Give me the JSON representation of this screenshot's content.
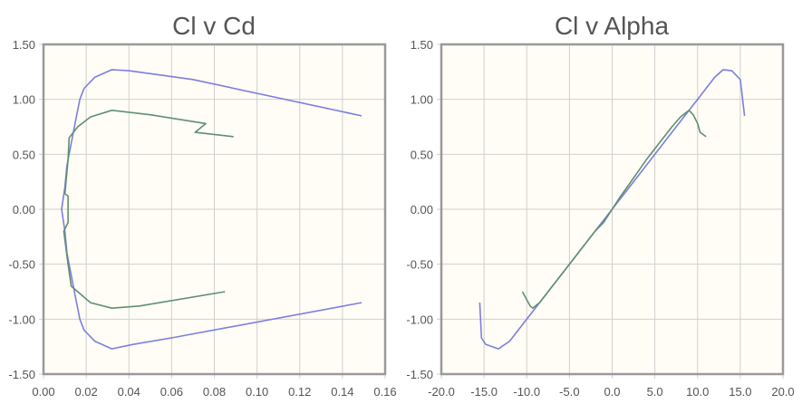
{
  "chart_data": [
    {
      "type": "line",
      "title": "Cl v Cd",
      "xlim": [
        0,
        0.16
      ],
      "ylim": [
        -1.5,
        1.5
      ],
      "xticks": [
        "0.00",
        "0.02",
        "0.04",
        "0.06",
        "0.08",
        "0.10",
        "0.12",
        "0.14",
        "0.16"
      ],
      "yticks": [
        "1.50",
        "1.00",
        "0.50",
        "0.00",
        "-0.50",
        "-1.00",
        "-1.50"
      ],
      "grid": true,
      "background": "#fffdf5",
      "series": [
        {
          "color": "#7b7fe0",
          "x": [
            0.149,
            0.06,
            0.042,
            0.032,
            0.024,
            0.019,
            0.017,
            0.015,
            0.013,
            0.011,
            0.01,
            0.0085,
            0.01,
            0.011,
            0.013,
            0.015,
            0.017,
            0.019,
            0.024,
            0.032,
            0.04,
            0.07,
            0.149
          ],
          "y": [
            -0.85,
            -1.17,
            -1.23,
            -1.27,
            -1.2,
            -1.1,
            -1.0,
            -0.8,
            -0.6,
            -0.4,
            -0.2,
            0.0,
            0.2,
            0.4,
            0.6,
            0.8,
            1.0,
            1.1,
            1.2,
            1.27,
            1.26,
            1.18,
            0.85
          ]
        },
        {
          "color": "#5f9070",
          "x": [
            0.085,
            0.045,
            0.032,
            0.022,
            0.013,
            0.0115,
            0.0095,
            0.0115,
            0.0115,
            0.0115,
            0.01,
            0.0115,
            0.012,
            0.016,
            0.022,
            0.032,
            0.05,
            0.076,
            0.071,
            0.089
          ],
          "y": [
            -0.75,
            -0.88,
            -0.9,
            -0.85,
            -0.7,
            -0.5,
            -0.2,
            -0.12,
            0.0,
            0.12,
            0.14,
            0.45,
            0.65,
            0.75,
            0.84,
            0.9,
            0.86,
            0.78,
            0.7,
            0.66
          ]
        }
      ]
    },
    {
      "type": "line",
      "title": "Cl v Alpha",
      "xlim": [
        -20,
        20
      ],
      "ylim": [
        -1.5,
        1.5
      ],
      "xticks": [
        "-20.0",
        "-15.0",
        "-10.0",
        "-5.0",
        "0.0",
        "5.0",
        "10.0",
        "15.0",
        "20.0"
      ],
      "yticks": [
        "1.50",
        "1.00",
        "0.50",
        "0.00",
        "-0.50",
        "-1.00",
        "-1.50"
      ],
      "grid": true,
      "background": "#fffdf5",
      "series": [
        {
          "color": "#7b7fe0",
          "x": [
            -15.5,
            -15.3,
            -14.8,
            -13.3,
            -12,
            -11,
            -10,
            -8,
            -6,
            -4,
            -2,
            0,
            2,
            4,
            6,
            8,
            10,
            11,
            12,
            13,
            14,
            15,
            15.5
          ],
          "y": [
            -0.85,
            -1.17,
            -1.23,
            -1.27,
            -1.2,
            -1.1,
            -1.0,
            -0.8,
            -0.6,
            -0.4,
            -0.2,
            0.0,
            0.2,
            0.4,
            0.6,
            0.8,
            1.0,
            1.1,
            1.2,
            1.27,
            1.26,
            1.18,
            0.85
          ]
        },
        {
          "color": "#5f9070",
          "x": [
            -10.5,
            -9.6,
            -9.3,
            -8.5,
            -7,
            -5,
            -2,
            -1,
            0,
            1,
            1.2,
            4,
            6,
            7,
            8,
            9,
            9.5,
            10,
            10.3,
            11
          ],
          "y": [
            -0.75,
            -0.88,
            -0.9,
            -0.85,
            -0.7,
            -0.5,
            -0.2,
            -0.12,
            0.0,
            0.12,
            0.14,
            0.45,
            0.65,
            0.75,
            0.84,
            0.9,
            0.86,
            0.78,
            0.7,
            0.66
          ]
        }
      ]
    }
  ]
}
